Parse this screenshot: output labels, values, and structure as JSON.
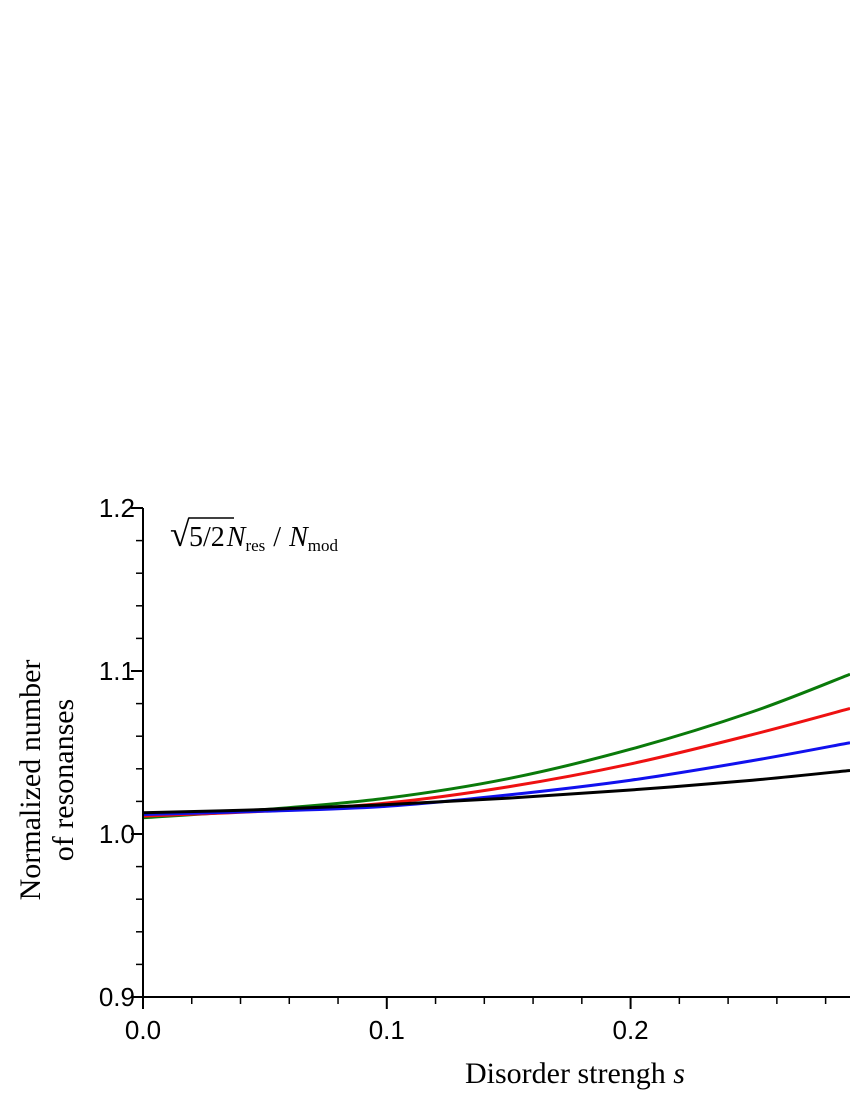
{
  "chart_data": {
    "type": "line",
    "xlabel": "Disorder strengh",
    "xlabel_var": "s",
    "ylabel_line1": "Normalized number",
    "ylabel_line2": "of resonanses",
    "annotation": {
      "sqrt_content": "5/2",
      "N": "N",
      "res": "res",
      "slash": "/",
      "mod": "mod"
    },
    "xlim": [
      0.0,
      0.29
    ],
    "ylim": [
      0.9,
      1.2
    ],
    "x_ticks": [
      "0.0",
      "0.1",
      "0.2"
    ],
    "y_ticks": [
      "0.9",
      "1.0",
      "1.1",
      "1.2"
    ],
    "grid": false,
    "series": [
      {
        "color": "#0a7a0a",
        "x": [
          0.0,
          0.05,
          0.1,
          0.15,
          0.2,
          0.25,
          0.29
        ],
        "y": [
          1.01,
          1.015,
          1.022,
          1.034,
          1.052,
          1.075,
          1.098
        ]
      },
      {
        "color": "#ee1111",
        "x": [
          0.0,
          0.05,
          0.1,
          0.15,
          0.2,
          0.25,
          0.29
        ],
        "y": [
          1.011,
          1.014,
          1.019,
          1.029,
          1.043,
          1.061,
          1.077
        ]
      },
      {
        "color": "#1111ee",
        "x": [
          0.0,
          0.05,
          0.1,
          0.15,
          0.2,
          0.25,
          0.29
        ],
        "y": [
          1.012,
          1.014,
          1.017,
          1.024,
          1.033,
          1.045,
          1.056
        ]
      },
      {
        "color": "#000000",
        "x": [
          0.0,
          0.05,
          0.1,
          0.15,
          0.2,
          0.25,
          0.29
        ],
        "y": [
          1.013,
          1.015,
          1.018,
          1.022,
          1.027,
          1.033,
          1.039
        ]
      }
    ]
  }
}
